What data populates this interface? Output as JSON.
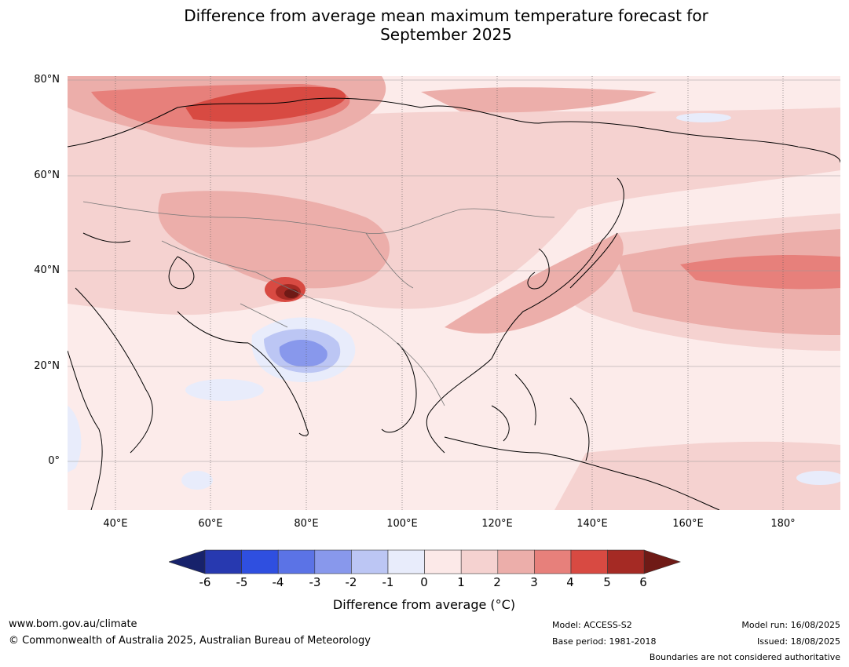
{
  "title": {
    "line1": "Difference from average mean maximum temperature forecast for",
    "line2": "September 2025"
  },
  "map": {
    "lat_labels": [
      "80°N",
      "60°N",
      "40°N",
      "20°N",
      "0°"
    ],
    "lon_labels": [
      "40°E",
      "60°E",
      "80°E",
      "100°E",
      "120°E",
      "140°E",
      "160°E",
      "180°"
    ],
    "lat_range": [
      -10,
      81
    ],
    "lon_range": [
      30,
      192
    ]
  },
  "colorbar": {
    "ticks": [
      "-6",
      "-5",
      "-4",
      "-3",
      "-2",
      "-1",
      "0",
      "1",
      "2",
      "3",
      "4",
      "5",
      "6"
    ],
    "colors": [
      "#17226b",
      "#2739b0",
      "#2f4fe0",
      "#5b73e6",
      "#8898ec",
      "#bcc6f4",
      "#e8ecfb",
      "#fce9e8",
      "#f5d2d0",
      "#ecaeaa",
      "#e7807b",
      "#d84a42",
      "#a52a24",
      "#6f1a16"
    ],
    "label": "Difference from average (°C)"
  },
  "footer": {
    "website": "www.bom.gov.au/climate",
    "copyright": "© Commonwealth of Australia 2025, Australian Bureau of Meteorology",
    "model": "Model: ACCESS-S2",
    "base_period": "Base period: 1981-2018",
    "model_run": "Model run: 16/08/2025",
    "issued": "Issued: 18/08/2025",
    "disclaimer": "Boundaries are not considered authoritative"
  }
}
